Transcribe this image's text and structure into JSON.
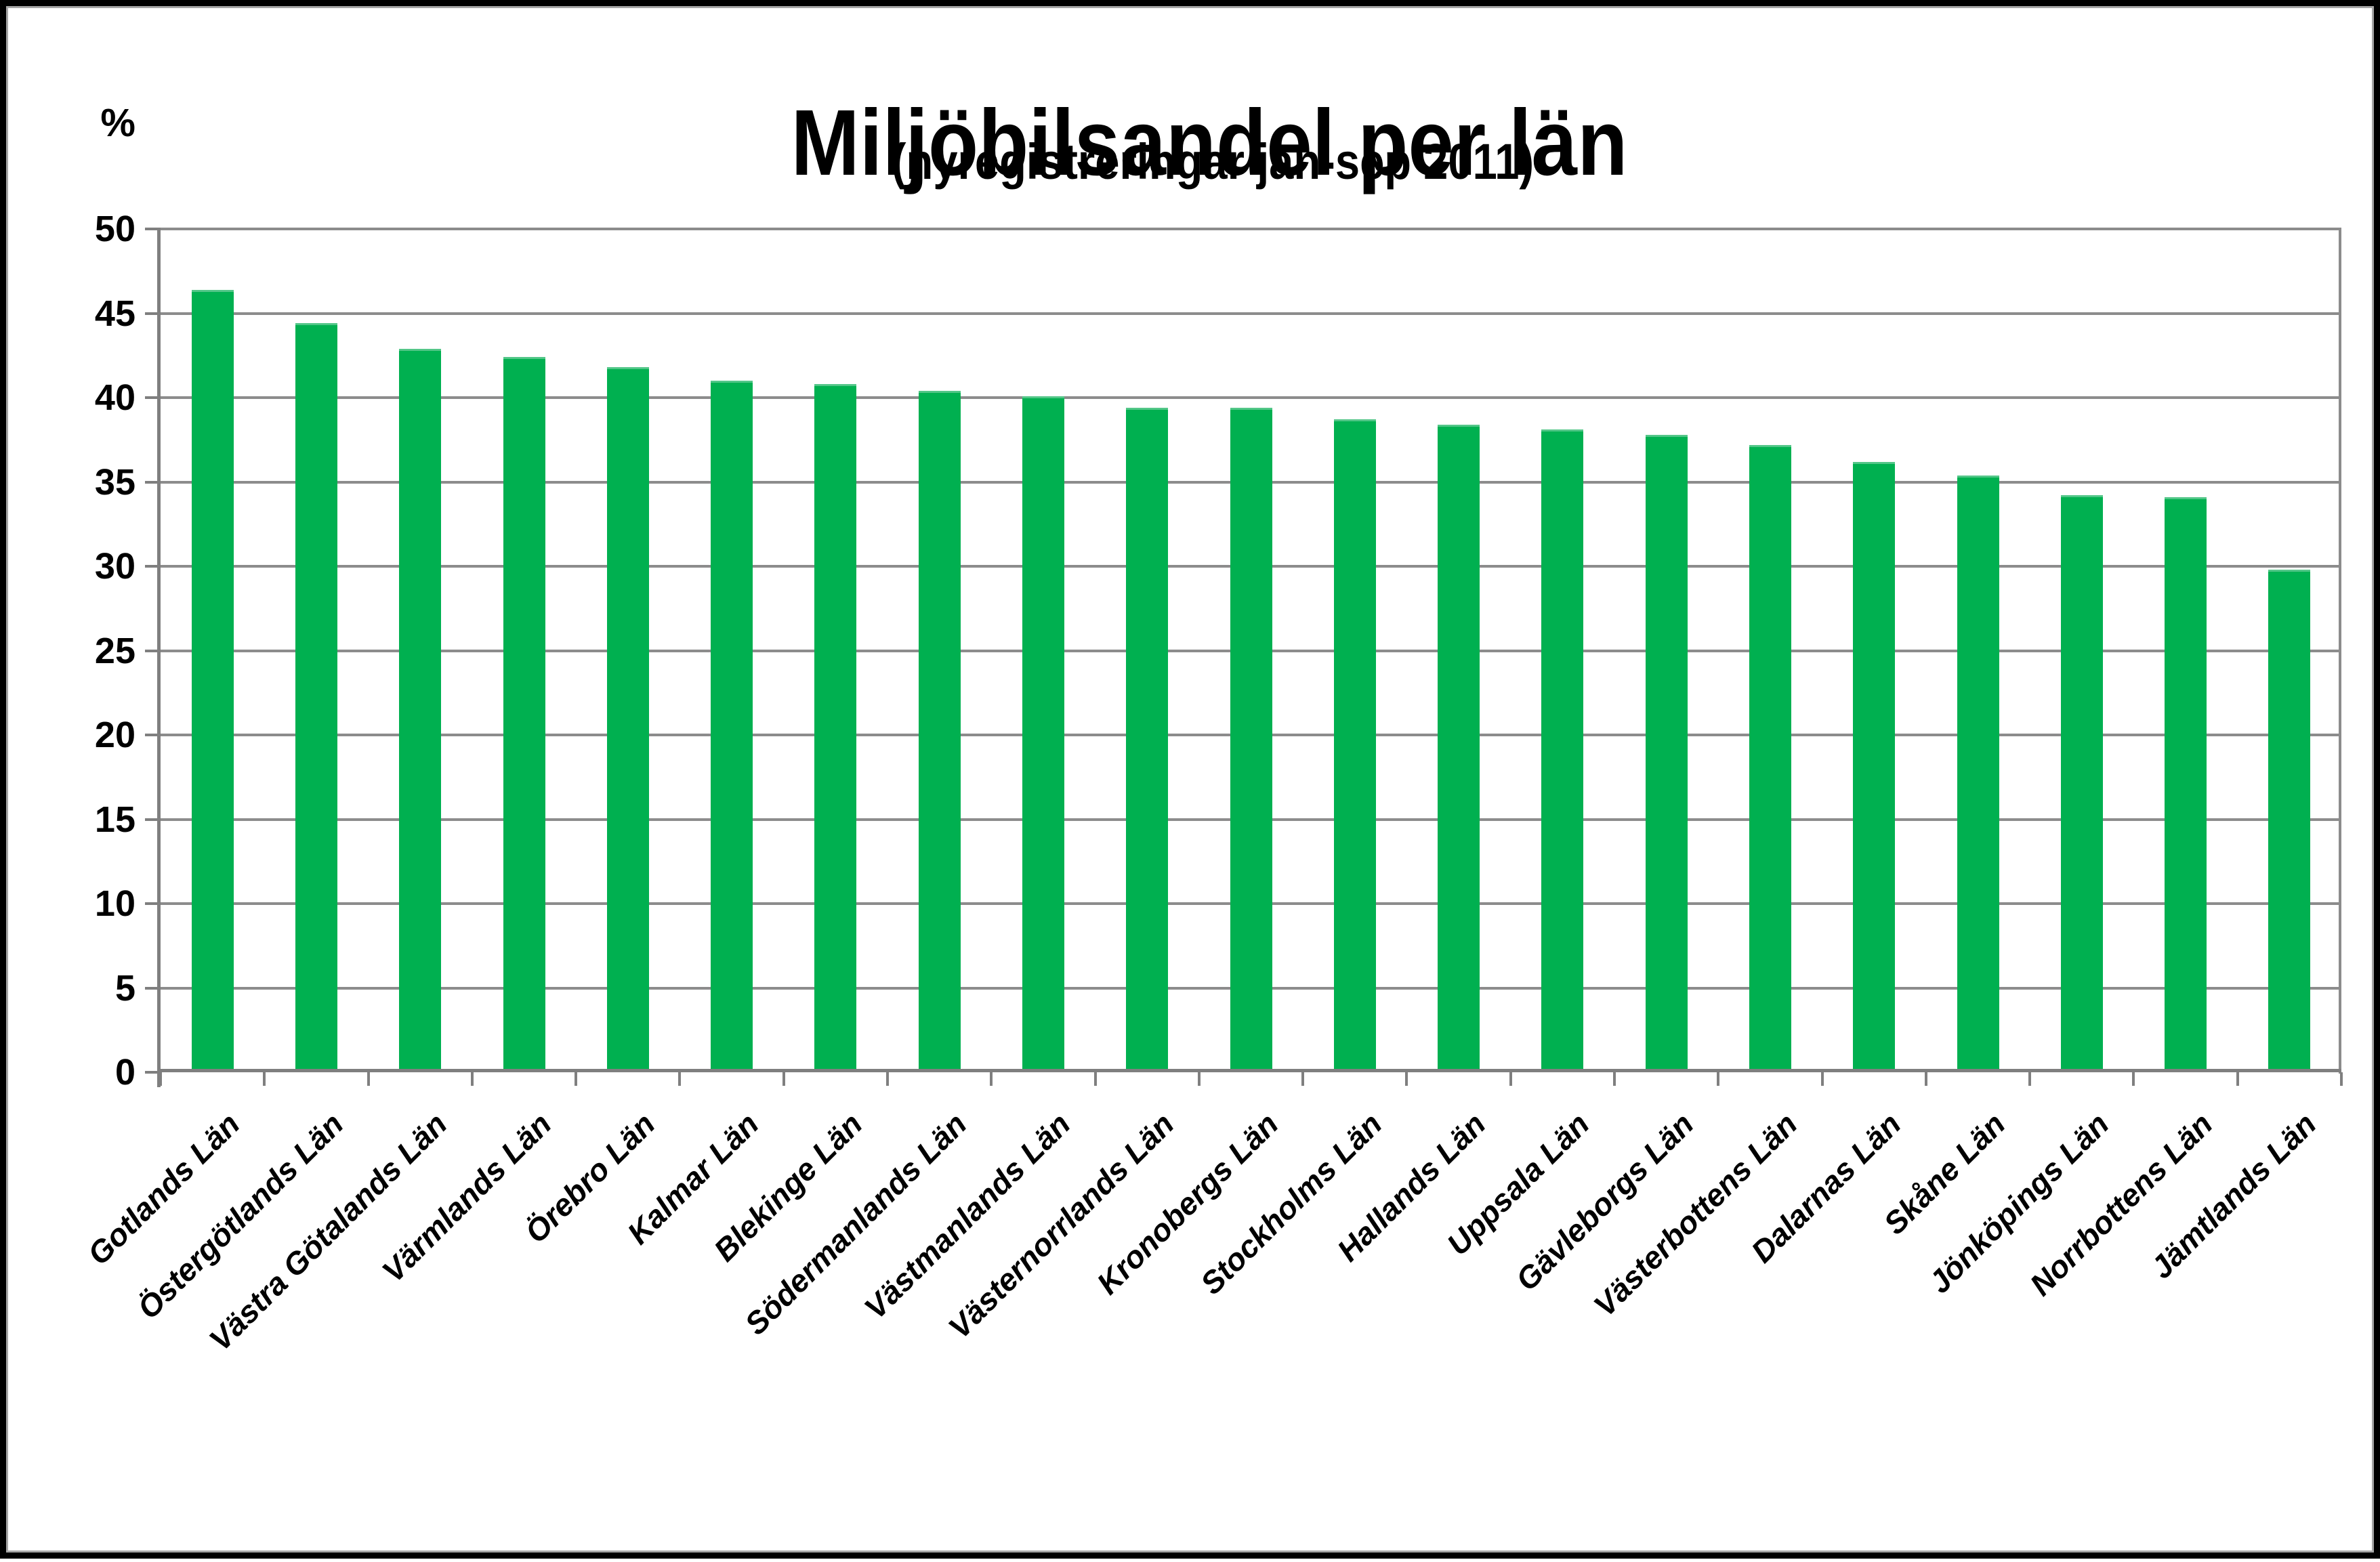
{
  "chart_data": {
    "type": "bar",
    "title": "Miljöbilsandel per län",
    "subtitle": "(nyregistreringar jan-sep 2011)",
    "ylabel": "%",
    "xlabel": "",
    "categories": [
      "Gotlands Län",
      "Östergötlands Län",
      "Västra Götalands Län",
      "Värmlands Län",
      "Örebro Län",
      "Kalmar Län",
      "Blekinge Län",
      "Södermanlands Län",
      "Västmanlands Län",
      "Västernorrlands Län",
      "Kronobergs Län",
      "Stockholms Län",
      "Hallands Län",
      "Uppsala Län",
      "Gävleborgs Län",
      "Västerbottens Län",
      "Dalarnas Län",
      "Skåne Län",
      "Jönköpings Län",
      "Norrbottens Län",
      "Jämtlands Län"
    ],
    "values": [
      46.4,
      44.4,
      42.9,
      42.4,
      41.8,
      41.0,
      40.8,
      40.4,
      40.1,
      39.4,
      39.4,
      38.7,
      38.4,
      38.1,
      37.8,
      37.2,
      36.2,
      35.4,
      34.2,
      34.1,
      29.8
    ],
    "ylim": [
      0,
      50
    ],
    "yticks": [
      0,
      5,
      10,
      15,
      20,
      25,
      30,
      35,
      40,
      45,
      50
    ],
    "grid": true,
    "legend_position": "none",
    "bar_color": "#00B050",
    "bar_top_highlight_color": "#53C688",
    "grid_color": "#8C8C8C",
    "axis_color": "#7F7F7F",
    "text_color": "#000000",
    "frame_border_color": "#000000",
    "frame_inner_line_color": "#A6A6A6"
  }
}
